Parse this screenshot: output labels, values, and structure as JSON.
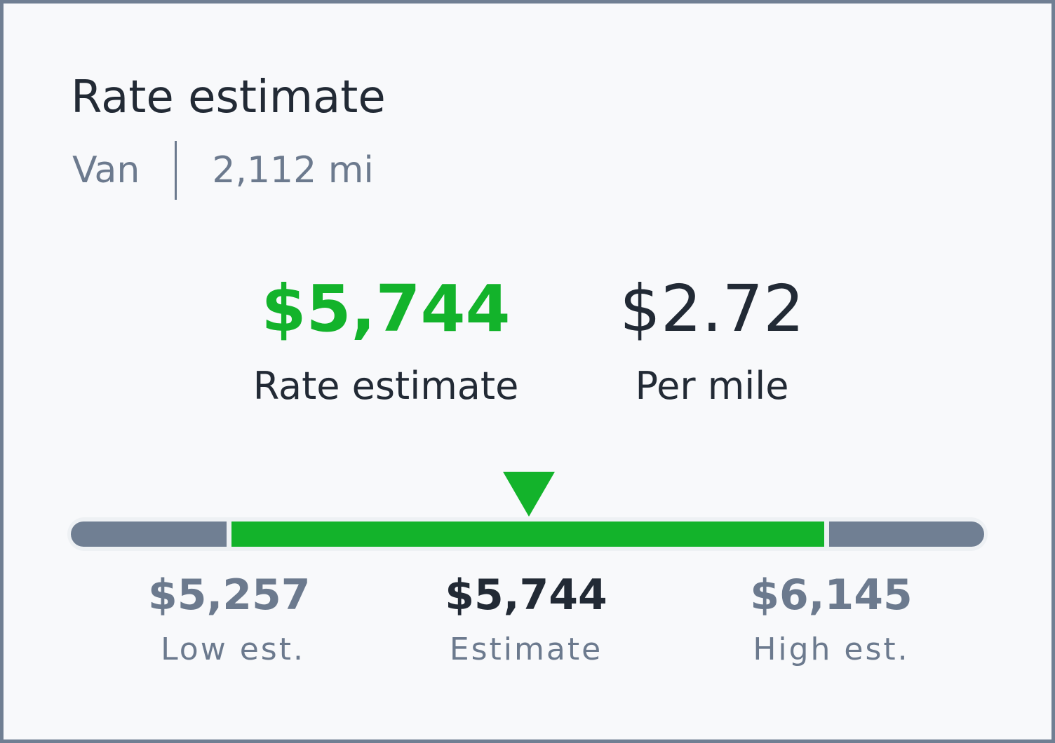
{
  "card": {
    "title": "Rate estimate",
    "equipment": "Van",
    "distance": "2,112 mi"
  },
  "summary": {
    "rate_value": "$5,744",
    "rate_label": "Rate estimate",
    "per_mile_value": "$2.72",
    "per_mile_label": "Per mile"
  },
  "range": {
    "low_value": "$5,257",
    "low_label": "Low est.",
    "estimate_value": "$5,744",
    "estimate_label": "Estimate",
    "high_value": "$6,145",
    "high_label": "High est.",
    "colors": {
      "in_range": "#13b32b",
      "out_of_range": "#707f93"
    }
  },
  "icons": {
    "marker": "triangle-down-icon"
  }
}
